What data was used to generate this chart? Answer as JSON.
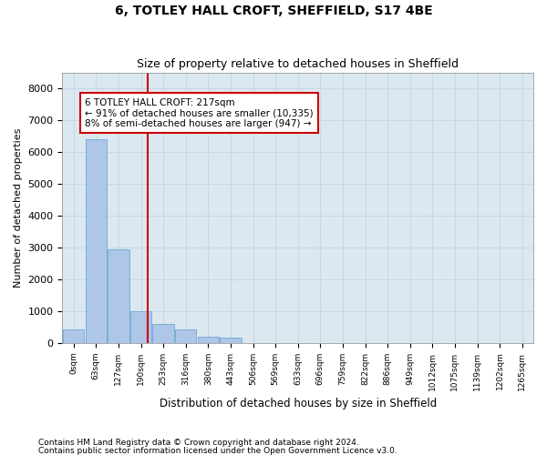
{
  "title": "6, TOTLEY HALL CROFT, SHEFFIELD, S17 4BE",
  "subtitle": "Size of property relative to detached houses in Sheffield",
  "xlabel": "Distribution of detached houses by size in Sheffield",
  "ylabel": "Number of detached properties",
  "footnote1": "Contains HM Land Registry data © Crown copyright and database right 2024.",
  "footnote2": "Contains public sector information licensed under the Open Government Licence v3.0.",
  "annotation_line1": "6 TOTLEY HALL CROFT: 217sqm",
  "annotation_line2": "← 91% of detached houses are smaller (10,335)",
  "annotation_line3": "8% of semi-detached houses are larger (947) →",
  "bar_color": "#aec6e8",
  "bar_edge_color": "#5a9fd4",
  "grid_color": "#c8d8e8",
  "background_color": "#dce8f0",
  "redline_color": "#cc0000",
  "redbox_color": "#cc0000",
  "bin_labels": [
    "0sqm",
    "63sqm",
    "127sqm",
    "190sqm",
    "253sqm",
    "316sqm",
    "380sqm",
    "443sqm",
    "506sqm",
    "569sqm",
    "633sqm",
    "696sqm",
    "759sqm",
    "822sqm",
    "886sqm",
    "949sqm",
    "1012sqm",
    "1075sqm",
    "1139sqm",
    "1202sqm",
    "1265sqm"
  ],
  "bin_values": [
    430,
    6400,
    2950,
    1000,
    590,
    430,
    200,
    160,
    0,
    0,
    0,
    0,
    0,
    0,
    0,
    0,
    0,
    0,
    0,
    0,
    0
  ],
  "redline_x": 3.3,
  "ylim": [
    0,
    8500
  ],
  "yticks": [
    0,
    1000,
    2000,
    3000,
    4000,
    5000,
    6000,
    7000,
    8000
  ]
}
